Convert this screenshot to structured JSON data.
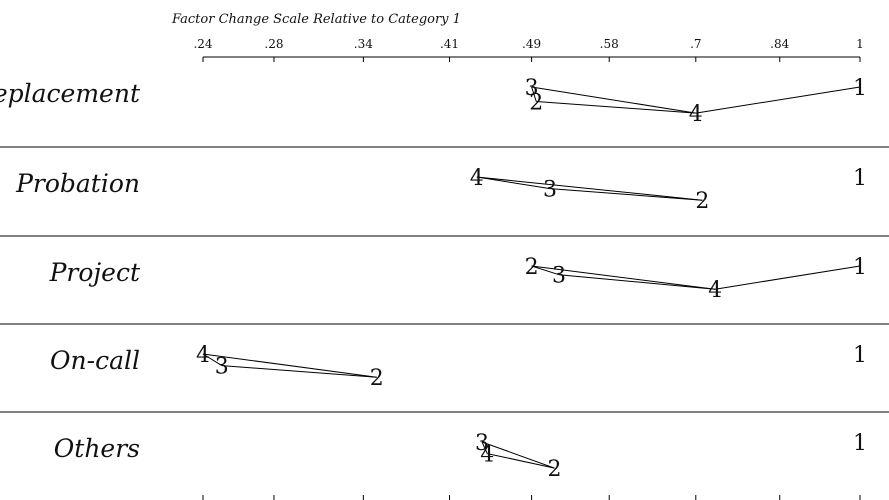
{
  "chart_data": {
    "type": "scatter",
    "title": "Factor Change Scale Relative to Category 1",
    "x_ticks": [
      {
        "value": 0.24,
        "label": ".24"
      },
      {
        "value": 0.28,
        "label": ".28"
      },
      {
        "value": 0.34,
        "label": ".34"
      },
      {
        "value": 0.41,
        "label": ".41"
      },
      {
        "value": 0.49,
        "label": ".49"
      },
      {
        "value": 0.58,
        "label": ".58"
      },
      {
        "value": 0.7,
        "label": ".7"
      },
      {
        "value": 0.84,
        "label": ".84"
      },
      {
        "value": 1,
        "label": "1"
      }
    ],
    "x_scale": "log",
    "xlim": [
      0.24,
      1
    ],
    "rows": [
      {
        "label": "Replacement",
        "points": [
          {
            "category": "1",
            "value": 1.0,
            "level": 0.0
          },
          {
            "category": "3",
            "value": 0.49,
            "level": 0.0
          },
          {
            "category": "2",
            "value": 0.495,
            "level": 0.25
          },
          {
            "category": "4",
            "value": 0.7,
            "level": 0.45
          }
        ]
      },
      {
        "label": "Probation",
        "points": [
          {
            "category": "1",
            "value": 1.0,
            "level": 0.0
          },
          {
            "category": "4",
            "value": 0.435,
            "level": 0.0
          },
          {
            "category": "3",
            "value": 0.51,
            "level": 0.2
          },
          {
            "category": "2",
            "value": 0.71,
            "level": 0.4
          }
        ]
      },
      {
        "label": "Project",
        "points": [
          {
            "category": "1",
            "value": 1.0,
            "level": 0.0
          },
          {
            "category": "2",
            "value": 0.49,
            "level": 0.0
          },
          {
            "category": "3",
            "value": 0.52,
            "level": 0.15
          },
          {
            "category": "4",
            "value": 0.73,
            "level": 0.4
          }
        ]
      },
      {
        "label": "On-call",
        "points": [
          {
            "category": "1",
            "value": 1.0,
            "level": 0.0
          },
          {
            "category": "4",
            "value": 0.24,
            "level": 0.0
          },
          {
            "category": "3",
            "value": 0.25,
            "level": 0.2
          },
          {
            "category": "2",
            "value": 0.35,
            "level": 0.4
          }
        ]
      },
      {
        "label": "Others",
        "points": [
          {
            "category": "1",
            "value": 1.0,
            "level": 0.0
          },
          {
            "category": "3",
            "value": 0.44,
            "level": 0.0
          },
          {
            "category": "4",
            "value": 0.445,
            "level": 0.2
          },
          {
            "category": "2",
            "value": 0.515,
            "level": 0.45
          }
        ]
      }
    ],
    "grid": false,
    "legend": "none"
  }
}
